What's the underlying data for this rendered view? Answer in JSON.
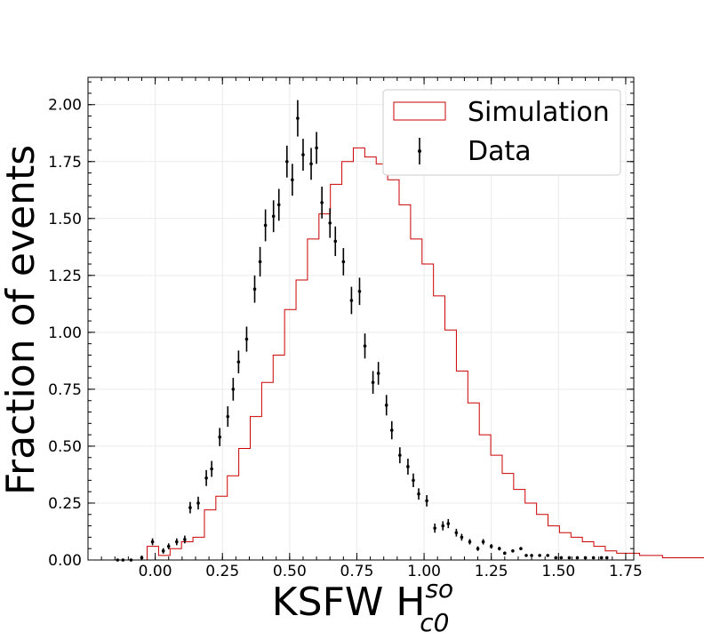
{
  "chart_data": {
    "type": "histogram",
    "xlabel": "KSFW H",
    "xlabel_sup": "so",
    "xlabel_sub": "c0",
    "ylabel": "Fraction of events",
    "xlim": [
      -0.25,
      1.78
    ],
    "ylim": [
      0,
      2.12
    ],
    "xticks": [
      0.0,
      0.25,
      0.5,
      0.75,
      1.0,
      1.25,
      1.5,
      1.75
    ],
    "xtick_labels": [
      "0.00",
      "0.25",
      "0.50",
      "0.75",
      "1.00",
      "1.25",
      "1.50",
      "1.75"
    ],
    "yticks": [
      0.0,
      0.25,
      0.5,
      0.75,
      1.0,
      1.25,
      1.5,
      1.75,
      2.0
    ],
    "ytick_labels": [
      "0.00",
      "0.25",
      "0.50",
      "0.75",
      "1.00",
      "1.25",
      "1.50",
      "1.75",
      "2.00"
    ],
    "grid": true,
    "legend_position": "top-right",
    "series": [
      {
        "name": "Simulation",
        "style": "step",
        "color": "#cc0000",
        "bin_width": 0.0426,
        "bin_start": -0.03,
        "values": [
          0.06,
          0.02,
          0.05,
          0.08,
          0.1,
          0.22,
          0.28,
          0.37,
          0.49,
          0.63,
          0.78,
          0.9,
          1.1,
          1.23,
          1.41,
          1.52,
          1.65,
          1.75,
          1.81,
          1.77,
          1.74,
          1.67,
          1.56,
          1.41,
          1.3,
          1.16,
          1.01,
          0.83,
          0.69,
          0.55,
          0.46,
          0.38,
          0.31,
          0.25,
          0.2,
          0.15,
          0.12,
          0.1,
          0.08,
          0.06,
          0.04,
          0.03,
          0.03,
          0.02,
          0.02,
          0.01,
          0.01,
          0.01,
          0.01,
          0.01,
          0.01,
          0.0
        ]
      },
      {
        "name": "Data",
        "style": "errorbar",
        "color": "#000000",
        "x": [
          -0.14,
          -0.12,
          -0.09,
          -0.05,
          -0.01,
          0.03,
          0.05,
          0.08,
          0.11,
          0.13,
          0.16,
          0.19,
          0.21,
          0.24,
          0.27,
          0.29,
          0.31,
          0.34,
          0.37,
          0.39,
          0.41,
          0.44,
          0.46,
          0.49,
          0.51,
          0.53,
          0.55,
          0.58,
          0.6,
          0.62,
          0.65,
          0.67,
          0.7,
          0.73,
          0.76,
          0.78,
          0.81,
          0.83,
          0.86,
          0.88,
          0.91,
          0.94,
          0.96,
          0.98,
          1.01,
          1.04,
          1.07,
          1.09,
          1.12,
          1.14,
          1.17,
          1.2,
          1.22,
          1.25,
          1.28,
          1.3,
          1.33,
          1.36,
          1.38,
          1.4,
          1.43,
          1.46,
          1.49,
          1.51,
          1.54,
          1.57,
          1.6,
          1.63,
          1.66,
          1.68
        ],
        "y": [
          0.0,
          0.0,
          0.0,
          0.01,
          0.08,
          0.04,
          0.06,
          0.08,
          0.09,
          0.23,
          0.25,
          0.36,
          0.4,
          0.54,
          0.63,
          0.75,
          0.87,
          0.97,
          1.19,
          1.31,
          1.47,
          1.51,
          1.56,
          1.75,
          1.67,
          1.94,
          1.78,
          1.74,
          1.81,
          1.57,
          1.48,
          1.4,
          1.31,
          1.14,
          1.18,
          0.94,
          0.78,
          0.82,
          0.68,
          0.57,
          0.46,
          0.41,
          0.35,
          0.29,
          0.26,
          0.14,
          0.15,
          0.16,
          0.12,
          0.1,
          0.08,
          0.05,
          0.08,
          0.06,
          0.05,
          0.03,
          0.04,
          0.05,
          0.02,
          0.02,
          0.02,
          0.02,
          0.01,
          0.01,
          0.01,
          0.01,
          0.01,
          0.01,
          0.01,
          0.01
        ],
        "yerr": [
          0.0,
          0.0,
          0.0,
          0.01,
          0.015,
          0.012,
          0.013,
          0.015,
          0.017,
          0.025,
          0.028,
          0.035,
          0.035,
          0.04,
          0.045,
          0.05,
          0.05,
          0.055,
          0.06,
          0.065,
          0.07,
          0.07,
          0.07,
          0.07,
          0.07,
          0.08,
          0.07,
          0.07,
          0.07,
          0.07,
          0.065,
          0.065,
          0.06,
          0.06,
          0.06,
          0.055,
          0.05,
          0.05,
          0.045,
          0.04,
          0.035,
          0.035,
          0.03,
          0.025,
          0.025,
          0.02,
          0.02,
          0.02,
          0.017,
          0.015,
          0.012,
          0.01,
          0.012,
          0.01,
          0.008,
          0.007,
          0.007,
          0.007,
          0.005,
          0.005,
          0.005,
          0.005,
          0.004,
          0.004,
          0.004,
          0.004,
          0.004,
          0.004,
          0.004,
          0.004
        ]
      }
    ]
  }
}
